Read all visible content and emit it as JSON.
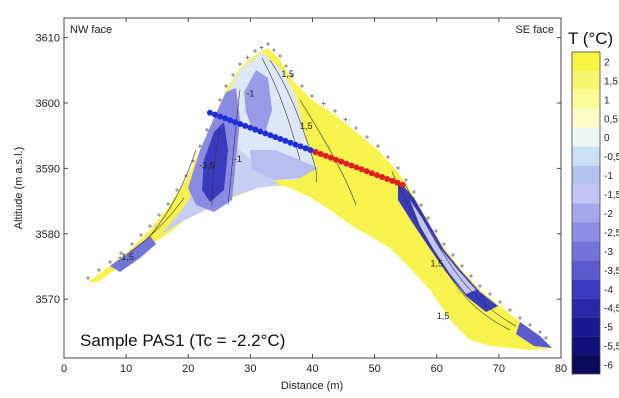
{
  "chart_data": {
    "type": "heatmap",
    "title": "",
    "xlabel": "Distance (m)",
    "ylabel": "Altitude (m a.s.l.)",
    "xlim": [
      0,
      80
    ],
    "ylim": [
      3561,
      3613
    ],
    "x_ticks": [
      0,
      10,
      20,
      30,
      40,
      50,
      60,
      70,
      80
    ],
    "y_ticks": [
      3570,
      3580,
      3590,
      3600,
      3610
    ],
    "corner_labels": {
      "left": "NW face",
      "right": "SE face"
    },
    "annotation": "Sample PAS1 (Tc  = -2.2°C)",
    "colorbar": {
      "title": "T (°C)",
      "levels": [
        2,
        1.5,
        1,
        0.5,
        0,
        -0.5,
        -1,
        -1.5,
        -2,
        -2.5,
        -3,
        -3.5,
        -4,
        -4.5,
        -5,
        -5.5,
        -6
      ],
      "labels": [
        "2",
        "1,5",
        "1",
        "0,5",
        "0",
        "-0,5",
        "-1",
        "-1,5",
        "-2",
        "-2,5",
        "-3",
        "-3,5",
        "-4",
        "-4,5",
        "-5",
        "-5,5",
        "-6"
      ],
      "colors": [
        "#f5f542",
        "#f8f870",
        "#fafa98",
        "#fcfcc6",
        "#eef6f4",
        "#c8e0f4",
        "#b2c4ee",
        "#c4c4f2",
        "#a6a6ea",
        "#8c8ce2",
        "#7474d8",
        "#5a5acc",
        "#3a3abc",
        "#2828a8",
        "#181890",
        "#101078",
        "#0a0a58"
      ]
    },
    "contour_labels": [
      {
        "text": "1,5",
        "x": 39,
        "y": 3596
      },
      {
        "text": "1,5",
        "x": 36,
        "y": 3604
      },
      {
        "text": "-1",
        "x": 30,
        "y": 3601
      },
      {
        "text": "-1",
        "x": 28,
        "y": 3591
      },
      {
        "text": "-3,5",
        "x": 23,
        "y": 3590
      },
      {
        "text": "-1,5",
        "x": 10,
        "y": 3576
      },
      {
        "text": "1,5",
        "x": 60,
        "y": 3575
      },
      {
        "text": "1,5",
        "x": 61,
        "y": 3567
      }
    ],
    "profile": {
      "blue": {
        "color": "#1f2fd8",
        "start": [
          23.5,
          3598.5
        ],
        "end": [
          40.5,
          3592.5
        ],
        "n": 22
      },
      "red": {
        "color": "#e02020",
        "start": [
          40.5,
          3592.5
        ],
        "end": [
          54.5,
          3587.5
        ],
        "n": 18
      }
    }
  }
}
